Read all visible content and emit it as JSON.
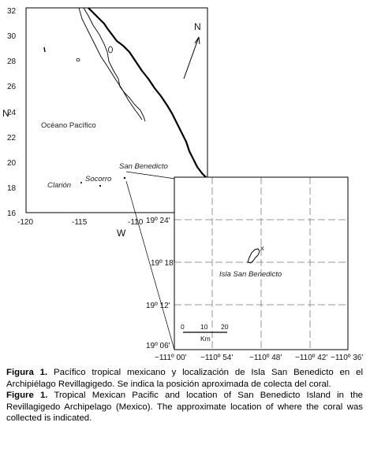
{
  "map": {
    "main_map": {
      "lat_ticks": [
        "32",
        "30",
        "28",
        "26",
        "24",
        "22",
        "20",
        "18",
        "16"
      ],
      "lon_ticks": [
        "-120",
        "-115",
        "-110"
      ],
      "axis_n": "N",
      "axis_w": "W",
      "north_arrow_label": "N",
      "ocean_label": "Océano Pacífico",
      "places": {
        "san_benedicto": "San Benedicto",
        "socorro": "Socorro",
        "clarion": "Clarión"
      }
    },
    "inset_map": {
      "lat_ticks": [
        "19º 24'",
        "19º 18'",
        "19º 12'",
        "19º 06'"
      ],
      "lon_ticks": [
        "−111º 00'",
        "−110º 54'",
        "−110º 48'",
        "−110º 42'",
        "−110º 36'"
      ],
      "island_label": "Isla San Benedicto",
      "collection_marker": "x",
      "scale": {
        "labels": [
          "0",
          "10",
          "20"
        ],
        "unit": "Km"
      }
    }
  },
  "caption": {
    "es_label": "Figura 1.",
    "es_text": " Pacífico tropical mexicano y localización de Isla San Benedicto en el Archipiélago Revillagigedo. Se indica la posición aproximada de colecta del coral.",
    "en_label": "Figure 1.",
    "en_text": " Tropical Mexican Pacific and location of San Benedicto Island in the Revillagigedo Archipelago (Mexico). The approximate location of where the coral was collected is indicated."
  }
}
